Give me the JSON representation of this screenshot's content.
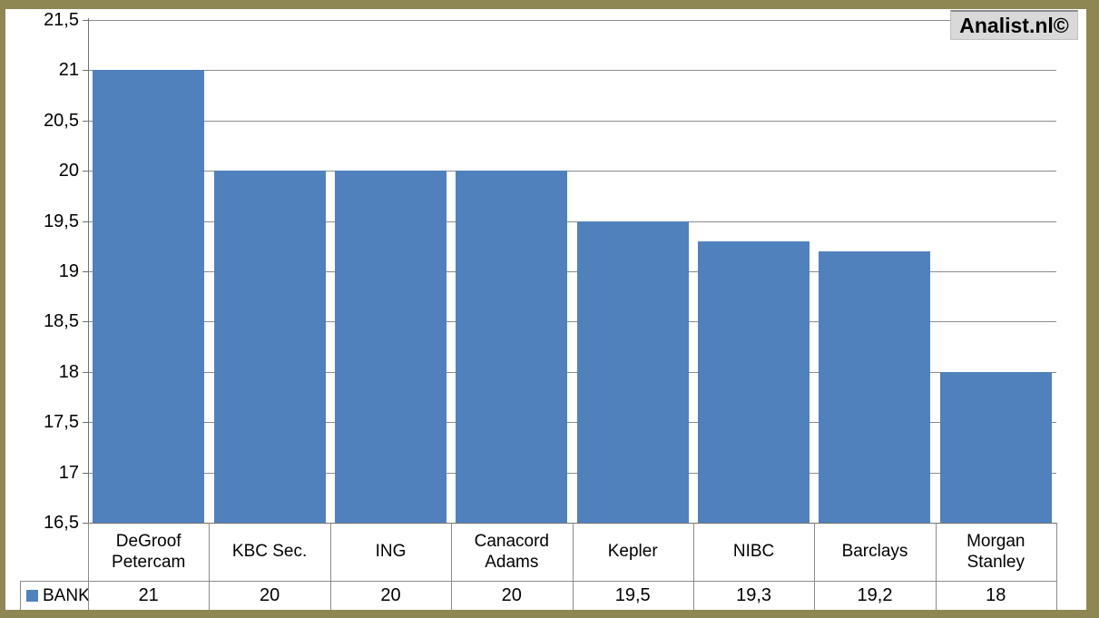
{
  "watermark": {
    "label": "Analist.nl©",
    "background": "#D9D9D9",
    "text_color": "#000000"
  },
  "frame": {
    "border_color": "#8E8754",
    "background": "#FFFFFF"
  },
  "legend": {
    "label": "BANK",
    "marker_color": "#5081BD"
  },
  "chart_data": {
    "type": "bar",
    "title": "",
    "xlabel": "",
    "ylabel": "",
    "categories": [
      "DeGroof Petercam",
      "KBC Sec.",
      "ING",
      "Canacord Adams",
      "Kepler",
      "NIBC",
      "Barclays",
      "Morgan Stanley"
    ],
    "series": [
      {
        "name": "BANK",
        "values": [
          21,
          20,
          20,
          20,
          19.5,
          19.3,
          19.2,
          18
        ]
      }
    ],
    "value_labels": [
      "21",
      "20",
      "20",
      "20",
      "19,5",
      "19,3",
      "19,2",
      "18"
    ],
    "ylim": [
      16.5,
      21.5
    ],
    "ytick_step": 0.5,
    "ytick_labels": [
      "16,5",
      "17",
      "17,5",
      "18",
      "18,5",
      "19",
      "19,5",
      "20",
      "20,5",
      "21",
      "21,5"
    ],
    "grid": true,
    "legend_position": "bottom-table",
    "decimal_separator": ",",
    "colors": {
      "bar": "#5081BD",
      "gridline": "#8C8C8C",
      "axis": "#707070",
      "table_border": "#8C8C8C"
    }
  }
}
